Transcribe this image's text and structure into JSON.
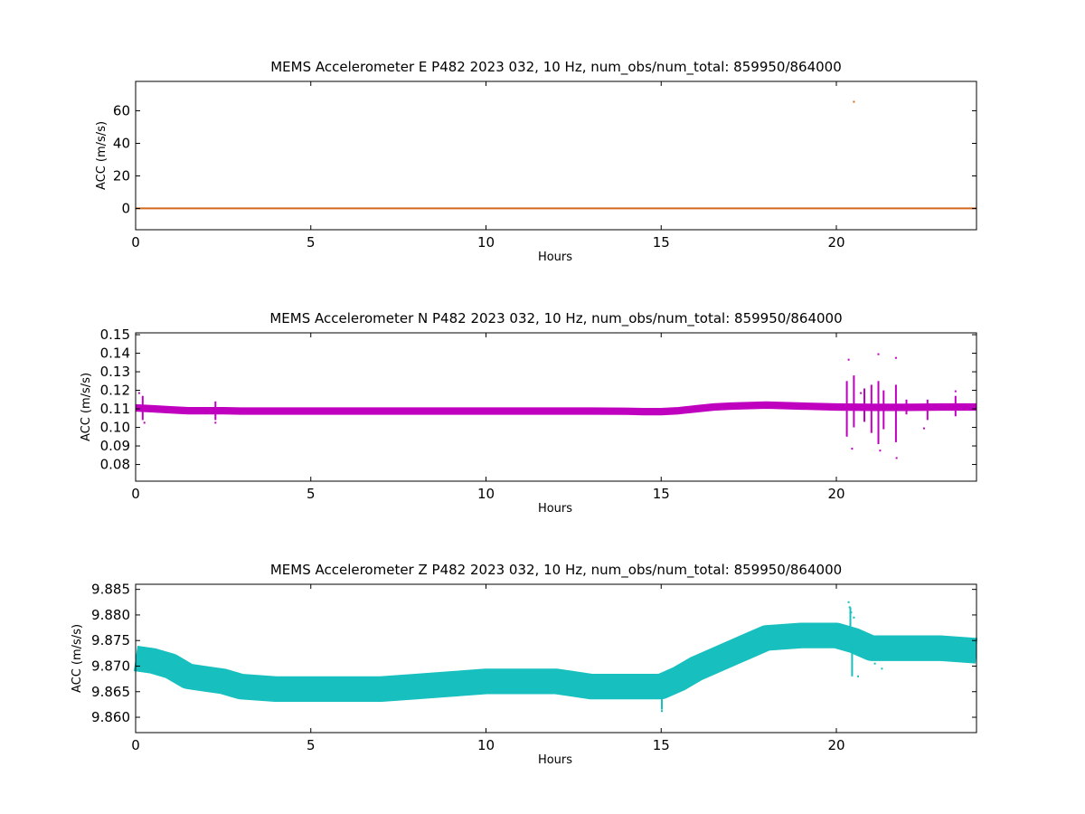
{
  "chart_data": [
    {
      "type": "scatter",
      "title": "MEMS Accelerometer E P482 2023 032, 10 Hz, num_obs/num_total: 859950/864000",
      "xlabel": "Hours",
      "ylabel": "ACC (m/s/s)",
      "xlim": [
        0,
        24
      ],
      "ylim": [
        -13,
        78
      ],
      "xticks": [
        0,
        5,
        10,
        15,
        20
      ],
      "xtick_labels": [
        "0",
        "5",
        "10",
        "15",
        "20"
      ],
      "yticks": [
        0,
        20,
        40,
        60
      ],
      "ytick_labels": [
        "0",
        "20",
        "40",
        "60"
      ],
      "color": "#d2691e",
      "band_width": 0.7,
      "series": [
        {
          "x": [
            0,
            2,
            4,
            6,
            8,
            10,
            12,
            14,
            16,
            18,
            20,
            22,
            24
          ],
          "y": [
            0.11,
            0.11,
            0.11,
            0.11,
            0.11,
            0.11,
            0.11,
            0.11,
            0.11,
            0.11,
            0.11,
            0.11,
            0.11
          ]
        }
      ],
      "outliers": {
        "x": [
          20.5
        ],
        "y": [
          65.5
        ]
      },
      "spikes": []
    },
    {
      "type": "scatter",
      "title": "MEMS Accelerometer N P482 2023 032, 10 Hz, num_obs/num_total: 859950/864000",
      "xlabel": "Hours",
      "ylabel": "ACC (m/s/s)",
      "xlim": [
        0,
        24
      ],
      "ylim": [
        0.071,
        0.151
      ],
      "xticks": [
        0,
        5,
        10,
        15,
        20
      ],
      "xtick_labels": [
        "0",
        "5",
        "10",
        "15",
        "20"
      ],
      "yticks": [
        0.08,
        0.09,
        0.1,
        0.11,
        0.12,
        0.13,
        0.14,
        0.15
      ],
      "ytick_labels": [
        "0.08",
        "0.09",
        "0.10",
        "0.11",
        "0.12",
        "0.13",
        "0.14",
        "0.15"
      ],
      "color": "#bf00bf",
      "band_width": 0.004,
      "series": [
        {
          "x": [
            0,
            0.5,
            1,
            1.5,
            2,
            2.5,
            3,
            4,
            5,
            6,
            7,
            8,
            9,
            10,
            11,
            12,
            13,
            14,
            14.5,
            15,
            15.5,
            16,
            16.5,
            17,
            18,
            19,
            20,
            21,
            22,
            23,
            24
          ],
          "y": [
            0.1105,
            0.11,
            0.1095,
            0.109,
            0.109,
            0.109,
            0.1088,
            0.1088,
            0.1088,
            0.1088,
            0.1088,
            0.1088,
            0.1088,
            0.1088,
            0.1088,
            0.1088,
            0.1088,
            0.1087,
            0.1085,
            0.1085,
            0.109,
            0.11,
            0.111,
            0.1115,
            0.112,
            0.1115,
            0.111,
            0.1108,
            0.1108,
            0.111,
            0.111
          ]
        }
      ],
      "outliers": {
        "x": [
          0.1,
          0.25,
          2.28,
          20.35,
          20.45,
          20.7,
          21.2,
          21.25,
          21.7,
          21.72,
          22.5,
          23.4
        ],
        "y": [
          0.1185,
          0.1025,
          0.1025,
          0.1365,
          0.0885,
          0.1185,
          0.1395,
          0.0875,
          0.1375,
          0.0835,
          0.0995,
          0.1195
        ]
      },
      "spikes": [
        {
          "x": 0.2,
          "low": 0.104,
          "high": 0.117
        },
        {
          "x": 2.28,
          "low": 0.104,
          "high": 0.114
        },
        {
          "x": 20.3,
          "low": 0.095,
          "high": 0.125
        },
        {
          "x": 20.5,
          "low": 0.1,
          "high": 0.128
        },
        {
          "x": 20.8,
          "low": 0.103,
          "high": 0.121
        },
        {
          "x": 21.0,
          "low": 0.097,
          "high": 0.123
        },
        {
          "x": 21.2,
          "low": 0.091,
          "high": 0.125
        },
        {
          "x": 21.35,
          "low": 0.099,
          "high": 0.12
        },
        {
          "x": 21.7,
          "low": 0.092,
          "high": 0.123
        },
        {
          "x": 22.0,
          "low": 0.107,
          "high": 0.115
        },
        {
          "x": 22.6,
          "low": 0.104,
          "high": 0.115
        },
        {
          "x": 23.4,
          "low": 0.106,
          "high": 0.117
        }
      ]
    },
    {
      "type": "scatter",
      "title": "MEMS Accelerometer Z P482 2023 032, 10 Hz, num_obs/num_total: 859950/864000",
      "xlabel": "Hours",
      "ylabel": "ACC (m/s/s)",
      "xlim": [
        0,
        24
      ],
      "ylim": [
        9.857,
        9.886
      ],
      "xticks": [
        0,
        5,
        10,
        15,
        20
      ],
      "xtick_labels": [
        "0",
        "5",
        "10",
        "15",
        "20"
      ],
      "yticks": [
        9.86,
        9.865,
        9.87,
        9.875,
        9.88,
        9.885
      ],
      "ytick_labels": [
        "9.860",
        "9.865",
        "9.870",
        "9.875",
        "9.880",
        "9.885"
      ],
      "color": "#17bfbf",
      "band_width": 0.005,
      "series": [
        {
          "x": [
            0,
            0.5,
            1,
            1.5,
            2,
            2.5,
            3,
            4,
            5,
            6,
            7,
            8,
            9,
            10,
            11,
            12,
            13,
            14,
            15,
            15.5,
            16,
            16.5,
            17,
            17.5,
            18,
            19,
            20,
            20.5,
            21,
            22,
            23,
            24
          ],
          "y": [
            9.8715,
            9.871,
            9.87,
            9.868,
            9.8675,
            9.867,
            9.866,
            9.8655,
            9.8655,
            9.8655,
            9.8655,
            9.866,
            9.8665,
            9.867,
            9.867,
            9.867,
            9.866,
            9.866,
            9.866,
            9.8675,
            9.8695,
            9.871,
            9.8725,
            9.874,
            9.8755,
            9.876,
            9.876,
            9.875,
            9.8735,
            9.8735,
            9.8735,
            9.873
          ]
        }
      ],
      "outliers": {
        "x": [
          15.02,
          20.35,
          20.38,
          20.42,
          20.5,
          20.62,
          21.1,
          21.3
        ],
        "y": [
          9.8612,
          9.8825,
          9.8815,
          9.8805,
          9.8795,
          9.868,
          9.8705,
          9.8695
        ]
      },
      "spikes": [
        {
          "x": 15.02,
          "low": 9.8615,
          "high": 9.866
        },
        {
          "x": 20.4,
          "low": 9.874,
          "high": 9.8815
        },
        {
          "x": 20.45,
          "low": 9.868,
          "high": 9.875
        }
      ]
    }
  ]
}
